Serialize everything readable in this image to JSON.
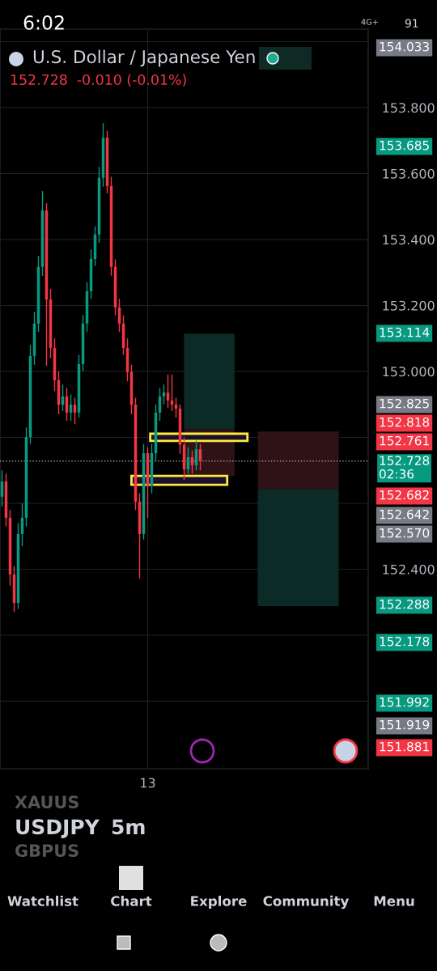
{
  "chart_data": {
    "type": "candlestick",
    "title": "U.S. Dollar / Japanese Yen",
    "subtitle": "152.728  -0.010 (-0.01%)",
    "categories": [
      null,
      null,
      null,
      null,
      null,
      null,
      null,
      null,
      null,
      null,
      null,
      null,
      null,
      null,
      null,
      null,
      null,
      null,
      null,
      null,
      null,
      null,
      null,
      null,
      null,
      null,
      null,
      null,
      null,
      null,
      null,
      null,
      null,
      null,
      null,
      null,
      "13",
      null,
      null,
      null,
      null,
      null,
      null,
      null,
      null,
      null,
      null,
      null,
      null,
      null,
      null,
      null,
      null,
      null,
      null,
      null,
      null,
      null,
      null,
      null,
      null,
      null,
      null,
      null,
      null,
      null,
      null,
      null,
      null,
      null,
      null,
      null,
      null,
      null,
      null,
      null,
      null,
      null,
      null,
      null,
      null,
      null,
      null,
      null,
      null,
      null,
      null,
      null,
      null,
      null,
      null
    ],
    "ohlc": [
      [
        152.62,
        152.7,
        152.59,
        152.666
      ],
      [
        152.666,
        152.69,
        152.53,
        152.556
      ],
      [
        152.556,
        152.58,
        152.35,
        152.384
      ],
      [
        152.384,
        152.41,
        152.271,
        152.298
      ],
      [
        152.298,
        152.54,
        152.28,
        152.507
      ],
      [
        152.507,
        152.6,
        152.47,
        152.556
      ],
      [
        152.556,
        152.83,
        152.53,
        152.801
      ],
      [
        152.801,
        153.08,
        152.78,
        153.047
      ],
      [
        153.047,
        153.18,
        153.02,
        153.145
      ],
      [
        153.145,
        153.35,
        153.12,
        153.317
      ],
      [
        153.317,
        153.547,
        153.29,
        153.488
      ],
      [
        153.488,
        153.51,
        153.017,
        153.218
      ],
      [
        153.218,
        153.25,
        153.04,
        153.071
      ],
      [
        153.071,
        153.1,
        152.94,
        152.973
      ],
      [
        152.973,
        153.0,
        152.87,
        152.899
      ],
      [
        152.899,
        152.96,
        152.88,
        152.924
      ],
      [
        152.924,
        152.95,
        152.85,
        152.875
      ],
      [
        152.875,
        152.93,
        152.85,
        152.899
      ],
      [
        152.899,
        152.92,
        152.84,
        152.875
      ],
      [
        152.875,
        153.05,
        152.86,
        153.022
      ],
      [
        153.022,
        153.17,
        153.0,
        153.145
      ],
      [
        153.145,
        153.27,
        153.12,
        153.243
      ],
      [
        153.243,
        153.37,
        153.22,
        153.341
      ],
      [
        153.341,
        153.44,
        153.32,
        153.415
      ],
      [
        153.415,
        153.62,
        153.39,
        153.587
      ],
      [
        153.587,
        153.753,
        153.56,
        153.709
      ],
      [
        153.709,
        153.73,
        153.54,
        153.562
      ],
      [
        153.562,
        153.59,
        153.29,
        153.317
      ],
      [
        153.317,
        153.34,
        153.17,
        153.194
      ],
      [
        153.194,
        153.22,
        153.12,
        153.145
      ],
      [
        153.145,
        153.17,
        153.05,
        153.071
      ],
      [
        153.071,
        153.1,
        152.97,
        152.998
      ],
      [
        152.998,
        153.02,
        152.87,
        152.899
      ],
      [
        152.899,
        152.92,
        152.58,
        152.605
      ],
      [
        152.605,
        152.63,
        152.372,
        152.507
      ],
      [
        152.507,
        152.78,
        152.49,
        152.752
      ],
      [
        152.752,
        152.77,
        152.556,
        152.654
      ],
      [
        152.654,
        152.78,
        152.63,
        152.752
      ],
      [
        152.752,
        152.9,
        152.73,
        152.875
      ],
      [
        152.875,
        152.95,
        152.85,
        152.924
      ],
      [
        152.924,
        152.96,
        152.9,
        152.936
      ],
      [
        152.936,
        152.99,
        152.89,
        152.912
      ],
      [
        152.912,
        152.99,
        152.88,
        152.899
      ],
      [
        152.899,
        152.92,
        152.86,
        152.887
      ],
      [
        152.887,
        152.9,
        152.75,
        152.777
      ],
      [
        152.777,
        152.8,
        152.671,
        152.703
      ],
      [
        152.703,
        152.77,
        152.69,
        152.74
      ],
      [
        152.74,
        152.76,
        152.69,
        152.715
      ],
      [
        152.715,
        152.79,
        152.7,
        152.764
      ],
      [
        152.764,
        152.78,
        152.7,
        152.728
      ],
      null,
      null,
      null,
      null,
      null,
      null,
      null,
      null,
      null,
      null,
      null,
      null,
      null,
      null,
      null,
      null,
      null,
      null,
      null,
      null,
      null,
      null,
      null,
      null,
      null,
      null,
      null,
      null,
      null,
      null,
      null,
      null,
      null,
      null,
      null,
      null,
      null,
      null,
      null,
      null,
      null
    ],
    "colors": [
      "#089981",
      "#f23645",
      "#f23645",
      "#f23645",
      "#089981",
      "#089981",
      "#089981",
      "#089981",
      "#089981",
      "#089981",
      "#089981",
      "#f23645",
      "#f23645",
      "#f23645",
      "#f23645",
      "#089981",
      "#f23645",
      "#089981",
      "#f23645",
      "#089981",
      "#089981",
      "#089981",
      "#089981",
      "#089981",
      "#089981",
      "#089981",
      "#f23645",
      "#f23645",
      "#f23645",
      "#f23645",
      "#f23645",
      "#f23645",
      "#f23645",
      "#f23645",
      "#f23645",
      "#089981",
      "#f23645",
      "#089981",
      "#089981",
      "#089981",
      "#089981",
      "#f23645",
      "#f23645",
      "#f23645",
      "#f23645",
      "#f23645",
      "#089981",
      "#f23645",
      "#089981",
      "#f23645",
      null,
      null,
      null,
      null,
      null,
      null,
      null,
      null,
      null,
      null,
      null,
      null,
      null,
      null,
      null,
      null,
      null,
      null,
      null,
      null,
      null,
      null,
      null,
      null,
      null,
      null,
      null,
      null,
      null,
      null,
      null,
      null,
      null,
      null,
      null,
      null,
      null,
      null,
      null,
      null,
      null
    ],
    "ylim": [
      151.795,
      154.038
    ],
    "yticks": [
      {
        "value": 152.0,
        "label": null
      },
      {
        "value": 152.2,
        "label": null
      },
      {
        "value": 152.4,
        "label": "152.400"
      },
      {
        "value": 152.6,
        "label": null
      },
      {
        "value": 152.8,
        "label": null
      },
      {
        "value": 153.0,
        "label": "153.000"
      },
      {
        "value": 153.2,
        "label": "153.200"
      },
      {
        "value": 153.4,
        "label": "153.400"
      },
      {
        "value": 153.6,
        "label": "153.600"
      },
      {
        "value": 153.8,
        "label": "153.800"
      },
      {
        "value": 154.0,
        "label": null
      }
    ],
    "grid": true,
    "bands": [
      {
        "axis": "y",
        "from": 152.825,
        "to": 153.114,
        "color": "#0c2b26"
      },
      {
        "axis": "y",
        "from": 152.682,
        "to": 152.825,
        "color": "#2e1216"
      },
      {
        "axis": "y",
        "from": 152.642,
        "to": 152.818,
        "color": "#2e1216"
      },
      {
        "axis": "y",
        "from": 152.288,
        "to": 152.642,
        "color": "#0c2b26"
      },
      {
        "axis": "y",
        "from": 152.789,
        "to": 152.811,
        "color": "#ffeb3b"
      },
      {
        "axis": "y",
        "from": 152.656,
        "to": 152.683,
        "color": "#ffeb3b"
      }
    ],
    "ref_lines": [
      {
        "axis": "y",
        "value": 152.728,
        "label": "152.728\n02:36",
        "color": "#9598a1",
        "line_style": "dotted"
      }
    ],
    "annotations": [
      "6:02",
      "4G+",
      "91",
      "XAUUS",
      "USDJPY",
      "5m",
      "GBPUS",
      "Watchlist",
      "Chart",
      "Explore",
      "Community",
      "Menu",
      "154.033",
      "153.685",
      "153.114",
      "152.825",
      "152.818",
      "152.761",
      "152.682",
      "152.642",
      "152.570",
      "152.288",
      "152.178",
      "151.992",
      "151.919",
      "151.881"
    ]
  }
}
